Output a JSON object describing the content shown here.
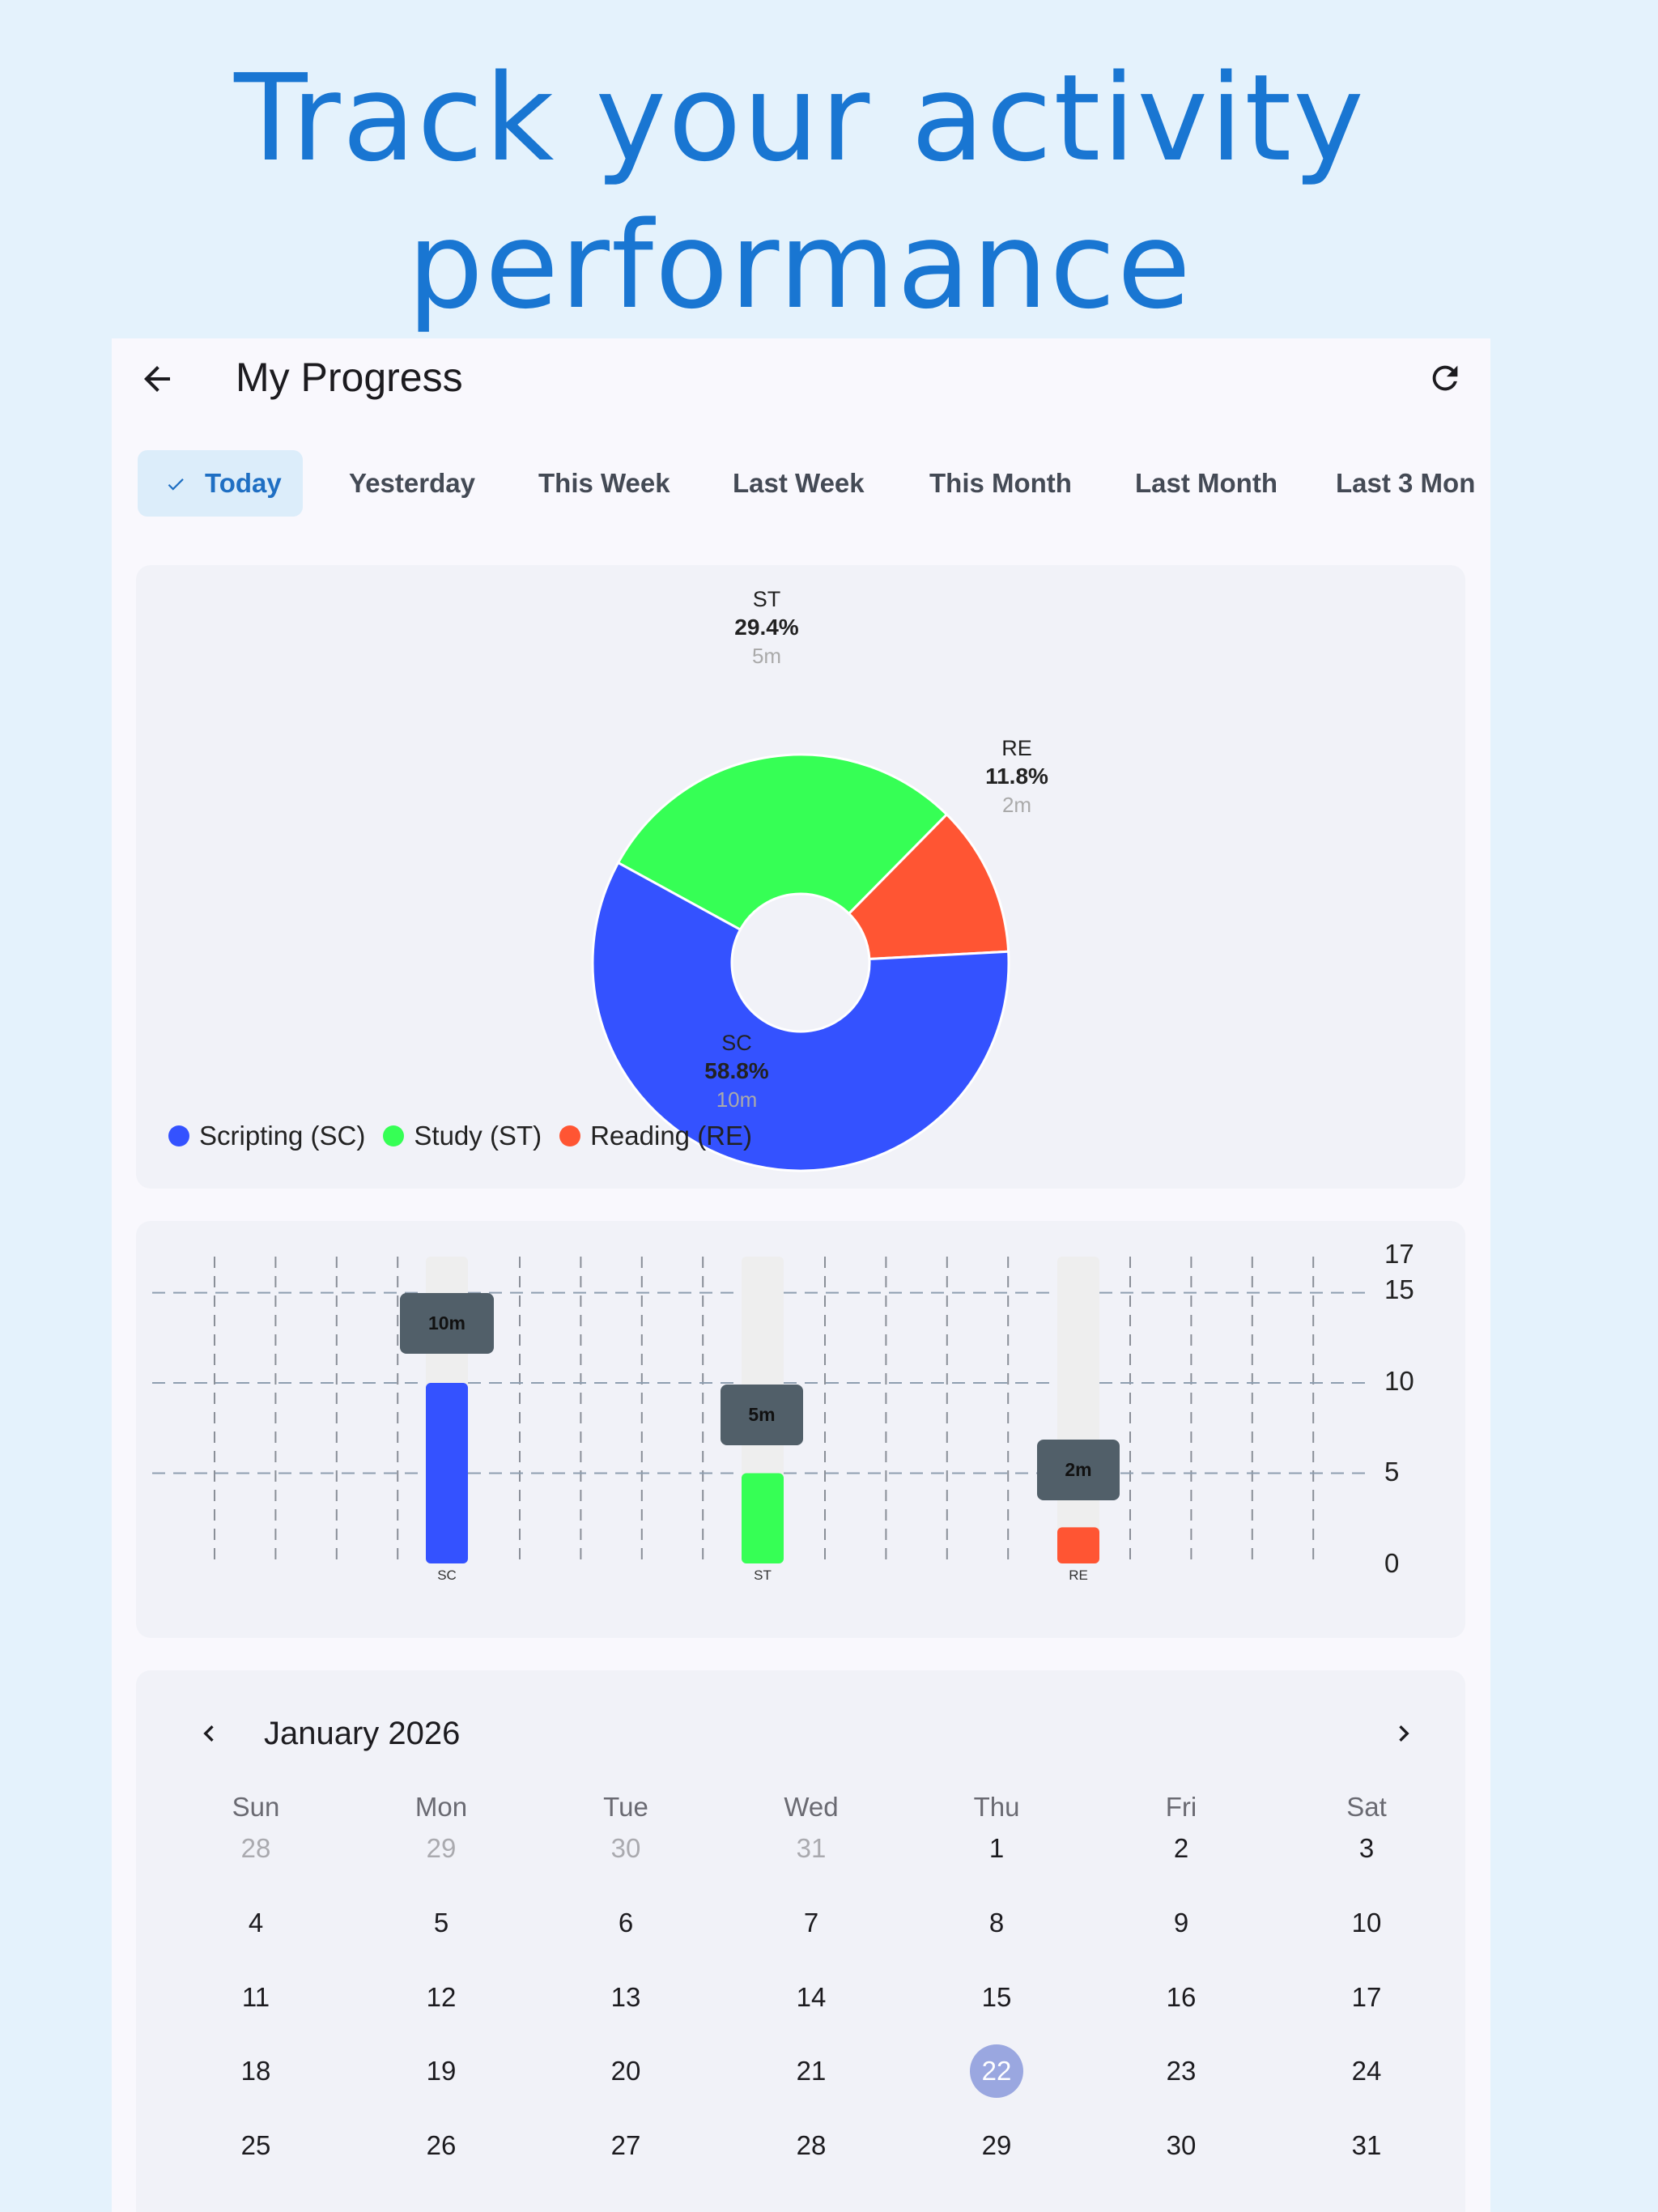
{
  "headline": "Track your activity performance",
  "headline_lines": [
    "Track your activity",
    "performance"
  ],
  "appbar": {
    "title": "My Progress"
  },
  "chips": [
    {
      "label": "Today",
      "selected": true
    },
    {
      "label": "Yesterday"
    },
    {
      "label": "This Week"
    },
    {
      "label": "Last Week"
    },
    {
      "label": "This Month"
    },
    {
      "label": "Last Month"
    },
    {
      "label": "Last 3 Mon"
    }
  ],
  "colors": {
    "scripting": "#3452ff",
    "study": "#36ff55",
    "reading": "#ff5533",
    "accent": "#1976d2"
  },
  "chart_data": [
    {
      "type": "pie",
      "slices": [
        {
          "code": "ST",
          "pct": "29.4%",
          "time": "5m",
          "value": 5
        },
        {
          "code": "RE",
          "pct": "11.8%",
          "time": "2m",
          "value": 2
        },
        {
          "code": "SC",
          "pct": "58.8%",
          "time": "10m",
          "value": 10
        }
      ],
      "legend": [
        "Scripting (SC)",
        "Study (ST)",
        "Reading (RE)"
      ]
    },
    {
      "type": "bar",
      "categories": [
        "SC",
        "ST",
        "RE"
      ],
      "values": [
        10,
        5,
        2
      ],
      "value_labels": [
        "10m",
        "5m",
        "2m"
      ],
      "ylim": [
        0,
        17
      ],
      "yticks": [
        "17",
        "15",
        "10",
        "5",
        "0"
      ],
      "grid": true
    }
  ],
  "calendar": {
    "month_label": "January 2026",
    "weekdays": [
      "Sun",
      "Mon",
      "Tue",
      "Wed",
      "Thu",
      "Fri",
      "Sat"
    ],
    "weeks": [
      [
        "28",
        "29",
        "30",
        "31",
        "1",
        "2",
        "3"
      ],
      [
        "4",
        "5",
        "6",
        "7",
        "8",
        "9",
        "10"
      ],
      [
        "11",
        "12",
        "13",
        "14",
        "15",
        "16",
        "17"
      ],
      [
        "18",
        "19",
        "20",
        "21",
        "22",
        "23",
        "24"
      ],
      [
        "25",
        "26",
        "27",
        "28",
        "29",
        "30",
        "31"
      ]
    ],
    "outside_days_first_week": 4,
    "selected_day": "22"
  }
}
